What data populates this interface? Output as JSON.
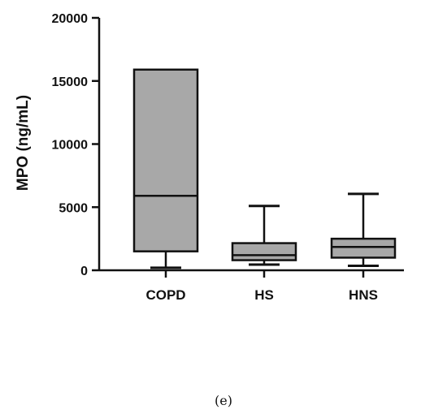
{
  "chart_data": {
    "type": "box",
    "ylabel": "MPO (ng/mL)",
    "ylim": [
      0,
      20000
    ],
    "yticks": [
      0,
      5000,
      10000,
      15000,
      20000
    ],
    "categories": [
      "COPD",
      "HS",
      "HNS"
    ],
    "boxes": [
      {
        "name": "COPD",
        "min": 200,
        "q1": 1500,
        "median": 5900,
        "q3": 15900,
        "max": 15900
      },
      {
        "name": "HS",
        "min": 450,
        "q1": 800,
        "median": 1200,
        "q3": 2150,
        "max": 5100
      },
      {
        "name": "HNS",
        "min": 350,
        "q1": 1000,
        "median": 1850,
        "q3": 2500,
        "max": 6050
      }
    ],
    "box_color": "#a8a8a8",
    "line_color": "#111111",
    "grid": false,
    "legend": "none"
  },
  "caption": "(e)"
}
